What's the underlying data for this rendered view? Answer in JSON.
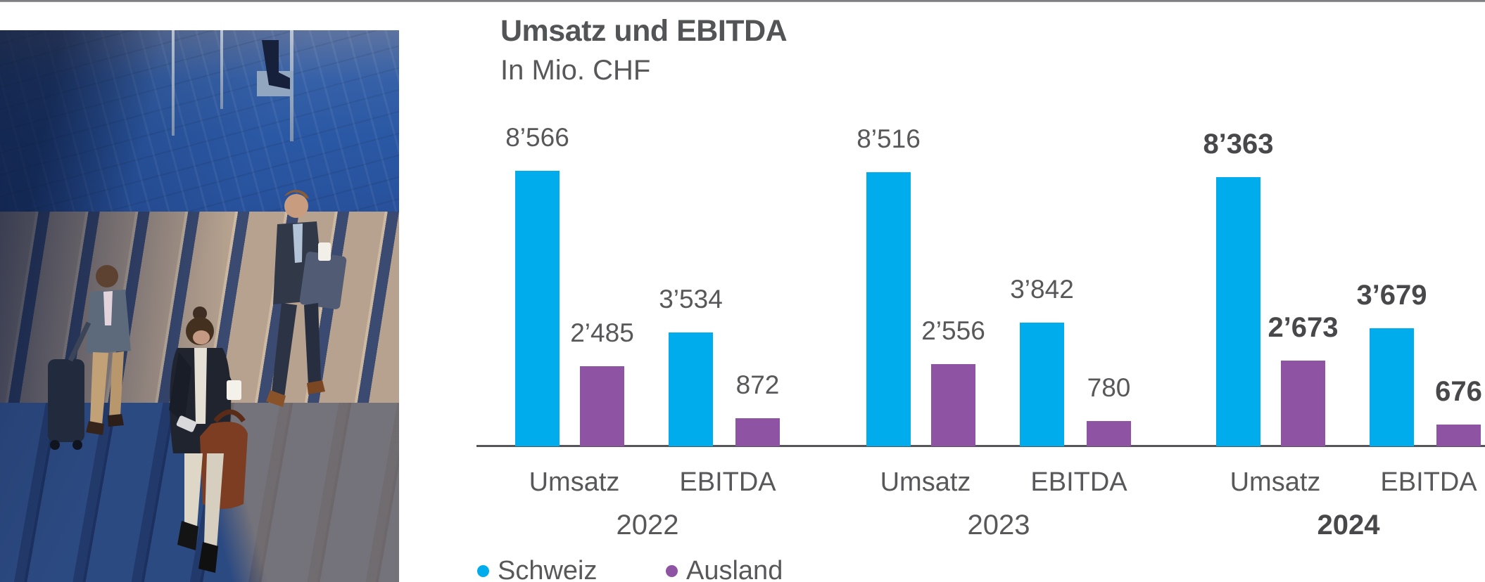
{
  "page": {
    "top_rule": true
  },
  "photo": {
    "description": "Drei Geschäftsleute mit Kaffeebechern, Rollkoffer und Handtasche steigen eine sonnenbeschienene Steintreppe hinauf"
  },
  "chart_data": {
    "type": "bar",
    "title": "Umsatz und EBITDA",
    "ylabel": "In Mio. CHF",
    "unit": "Mio. CHF",
    "ylim": [
      0,
      10000
    ],
    "grid": false,
    "legend_position": "bottom",
    "legend": [
      "Schweiz",
      "Ausland"
    ],
    "colors": {
      "Schweiz": "#00ACEB",
      "Ausland": "#8E54A3"
    },
    "metrics": [
      "Umsatz",
      "EBITDA"
    ],
    "groups": [
      {
        "year": "2022",
        "emphasis": false,
        "bars": [
          {
            "metric": "Umsatz",
            "series": "Schweiz",
            "value": 8566,
            "label": "8’566"
          },
          {
            "metric": "Umsatz",
            "series": "Ausland",
            "value": 2485,
            "label": "2’485"
          },
          {
            "metric": "EBITDA",
            "series": "Schweiz",
            "value": 3534,
            "label": "3’534"
          },
          {
            "metric": "EBITDA",
            "series": "Ausland",
            "value": 872,
            "label": "872"
          }
        ]
      },
      {
        "year": "2023",
        "emphasis": false,
        "bars": [
          {
            "metric": "Umsatz",
            "series": "Schweiz",
            "value": 8516,
            "label": "8’516"
          },
          {
            "metric": "Umsatz",
            "series": "Ausland",
            "value": 2556,
            "label": "2’556"
          },
          {
            "metric": "EBITDA",
            "series": "Schweiz",
            "value": 3842,
            "label": "3’842"
          },
          {
            "metric": "EBITDA",
            "series": "Ausland",
            "value": 780,
            "label": "780"
          }
        ]
      },
      {
        "year": "2024",
        "emphasis": true,
        "bars": [
          {
            "metric": "Umsatz",
            "series": "Schweiz",
            "value": 8363,
            "label": "8’363"
          },
          {
            "metric": "Umsatz",
            "series": "Ausland",
            "value": 2673,
            "label": "2’673"
          },
          {
            "metric": "EBITDA",
            "series": "Schweiz",
            "value": 3679,
            "label": "3’679"
          },
          {
            "metric": "EBITDA",
            "series": "Ausland",
            "value": 676,
            "label": "676"
          }
        ]
      }
    ]
  }
}
